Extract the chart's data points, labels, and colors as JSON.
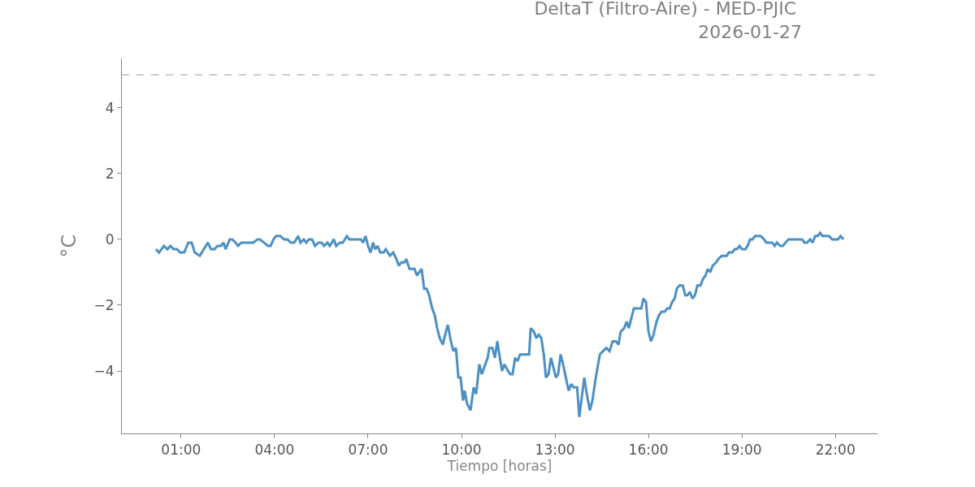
{
  "chart_data": {
    "type": "line",
    "title": "DeltaT (Filtro-Aire) - MED-PJIC \n2026-01-27",
    "xlabel": "Tiempo [horas]",
    "ylabel": "°C",
    "xlim": [
      -0.9,
      23.35
    ],
    "ylim": [
      -5.9,
      5.5
    ],
    "xticks": [
      {
        "value": 1,
        "label": "01:00"
      },
      {
        "value": 4,
        "label": "04:00"
      },
      {
        "value": 7,
        "label": "07:00"
      },
      {
        "value": 10,
        "label": "10:00"
      },
      {
        "value": 13,
        "label": "13:00"
      },
      {
        "value": 16,
        "label": "16:00"
      },
      {
        "value": 19,
        "label": "19:00"
      },
      {
        "value": 22,
        "label": "22:00"
      }
    ],
    "yticks": [
      {
        "value": -4,
        "label": "−4"
      },
      {
        "value": -2,
        "label": "−2"
      },
      0,
      2,
      4
    ],
    "marker": "none",
    "line_style": "solid",
    "ref_lines": [
      {
        "axis": "y",
        "value": 5,
        "color": "#bbbbbb",
        "line_style": "dashed"
      }
    ],
    "series": [
      {
        "color": "#4a90c4",
        "x": [
          0.19,
          0.29,
          0.45,
          0.56,
          0.66,
          0.76,
          0.87,
          0.97,
          1.1,
          1.23,
          1.34,
          1.44,
          1.6,
          1.73,
          1.86,
          1.96,
          2.07,
          2.17,
          2.28,
          2.36,
          2.43,
          2.56,
          2.64,
          2.75,
          2.83,
          2.93,
          3.32,
          3.45,
          3.53,
          3.66,
          3.79,
          3.87,
          3.97,
          4.05,
          4.18,
          4.31,
          4.42,
          4.52,
          4.63,
          4.76,
          4.83,
          4.94,
          5.02,
          5.1,
          5.2,
          5.3,
          5.41,
          5.51,
          5.59,
          5.7,
          5.77,
          5.9,
          5.98,
          6.09,
          6.19,
          6.32,
          6.4,
          6.77,
          6.84,
          6.92,
          7.0,
          7.08,
          7.16,
          7.23,
          7.31,
          7.39,
          7.5,
          7.57,
          7.7,
          7.81,
          7.91,
          7.99,
          8.07,
          8.17,
          8.23,
          8.33,
          8.49,
          8.57,
          8.72,
          8.8,
          8.88,
          8.96,
          9.06,
          9.14,
          9.22,
          9.3,
          9.4,
          9.5,
          9.56,
          9.66,
          9.74,
          9.82,
          9.9,
          9.97,
          10.05,
          10.1,
          10.18,
          10.29,
          10.39,
          10.47,
          10.57,
          10.65,
          10.76,
          10.84,
          10.89,
          10.99,
          11.07,
          11.15,
          11.23,
          11.3,
          11.38,
          11.49,
          11.57,
          11.64,
          11.72,
          11.8,
          11.88,
          12.17,
          12.22,
          12.32,
          12.4,
          12.48,
          12.56,
          12.64,
          12.71,
          12.79,
          12.87,
          12.95,
          13.03,
          13.1,
          13.18,
          13.26,
          13.37,
          13.44,
          13.52,
          13.6,
          13.71,
          13.78,
          13.86,
          13.94,
          14.02,
          14.12,
          14.2,
          14.31,
          14.44,
          14.54,
          14.65,
          14.75,
          14.85,
          14.96,
          15.04,
          15.11,
          15.22,
          15.3,
          15.37,
          15.45,
          15.53,
          15.77,
          15.84,
          15.92,
          16.0,
          16.08,
          16.16,
          16.26,
          16.34,
          16.42,
          16.52,
          16.6,
          16.68,
          16.76,
          16.84,
          16.91,
          16.99,
          17.1,
          17.18,
          17.25,
          17.33,
          17.41,
          17.49,
          17.57,
          17.67,
          17.75,
          17.83,
          17.9,
          17.98,
          18.06,
          18.17,
          18.24,
          18.35,
          18.51,
          18.58,
          18.69,
          18.77,
          18.84,
          18.92,
          19.0,
          19.11,
          19.18,
          19.26,
          19.34,
          19.42,
          19.6,
          19.71,
          19.78,
          19.97,
          20.05,
          20.12,
          20.23,
          20.31,
          20.49,
          20.93,
          21.01,
          21.09,
          21.19,
          21.27,
          21.35,
          21.43,
          21.51,
          21.58,
          21.79,
          21.9,
          22.08,
          22.16,
          22.26
        ],
        "values": [
          -0.3,
          -0.4,
          -0.2,
          -0.3,
          -0.2,
          -0.3,
          -0.3,
          -0.4,
          -0.4,
          -0.1,
          -0.1,
          -0.4,
          -0.5,
          -0.3,
          -0.1,
          -0.3,
          -0.3,
          -0.2,
          -0.2,
          -0.1,
          -0.3,
          0.0,
          0.0,
          -0.1,
          -0.2,
          -0.1,
          -0.1,
          0.0,
          0.0,
          -0.1,
          -0.2,
          -0.2,
          0.0,
          0.1,
          0.1,
          0.0,
          0.0,
          -0.1,
          -0.1,
          0.1,
          -0.1,
          0.0,
          -0.1,
          0.0,
          0.0,
          -0.2,
          -0.1,
          -0.1,
          -0.2,
          -0.1,
          -0.2,
          0.0,
          -0.2,
          -0.1,
          -0.1,
          0.1,
          0.0,
          0.0,
          -0.1,
          0.1,
          -0.2,
          -0.4,
          -0.1,
          -0.3,
          -0.2,
          -0.4,
          -0.4,
          -0.3,
          -0.5,
          -0.4,
          -0.6,
          -0.8,
          -0.7,
          -0.7,
          -0.6,
          -0.9,
          -0.9,
          -1.1,
          -0.9,
          -1.5,
          -1.5,
          -1.7,
          -2.1,
          -2.3,
          -2.7,
          -3.0,
          -3.2,
          -2.8,
          -2.6,
          -3.1,
          -3.4,
          -3.3,
          -4.2,
          -4.2,
          -4.9,
          -4.6,
          -5.0,
          -5.2,
          -4.5,
          -4.7,
          -3.8,
          -4.1,
          -3.8,
          -3.6,
          -3.3,
          -3.3,
          -3.6,
          -3.1,
          -3.6,
          -4.0,
          -3.8,
          -4.0,
          -4.1,
          -4.1,
          -3.6,
          -3.7,
          -3.5,
          -3.5,
          -2.7,
          -2.8,
          -3.0,
          -2.9,
          -3.0,
          -3.5,
          -4.2,
          -4.1,
          -3.6,
          -3.9,
          -4.2,
          -4.1,
          -3.5,
          -3.8,
          -4.3,
          -4.6,
          -4.4,
          -4.5,
          -4.5,
          -5.4,
          -4.8,
          -4.2,
          -4.7,
          -5.2,
          -4.9,
          -4.2,
          -3.5,
          -3.4,
          -3.3,
          -3.4,
          -3.1,
          -3.1,
          -3.2,
          -2.8,
          -2.7,
          -2.5,
          -2.7,
          -2.4,
          -2.1,
          -2.1,
          -1.8,
          -1.9,
          -2.8,
          -3.1,
          -2.9,
          -2.5,
          -2.3,
          -2.2,
          -2.2,
          -2.1,
          -2.1,
          -1.9,
          -1.8,
          -1.5,
          -1.4,
          -1.4,
          -1.7,
          -1.7,
          -1.6,
          -1.8,
          -1.7,
          -1.4,
          -1.4,
          -1.2,
          -1.1,
          -0.9,
          -1.0,
          -0.8,
          -0.7,
          -0.6,
          -0.5,
          -0.5,
          -0.4,
          -0.4,
          -0.3,
          -0.3,
          -0.2,
          -0.3,
          -0.3,
          -0.2,
          0.0,
          0.0,
          0.1,
          0.1,
          0.0,
          -0.1,
          -0.1,
          -0.2,
          -0.1,
          -0.2,
          -0.2,
          0.0,
          0.0,
          -0.1,
          -0.1,
          0.0,
          -0.1,
          0.1,
          0.1,
          0.2,
          0.1,
          0.1,
          0.0,
          0.0,
          0.1,
          0.0
        ]
      }
    ]
  }
}
